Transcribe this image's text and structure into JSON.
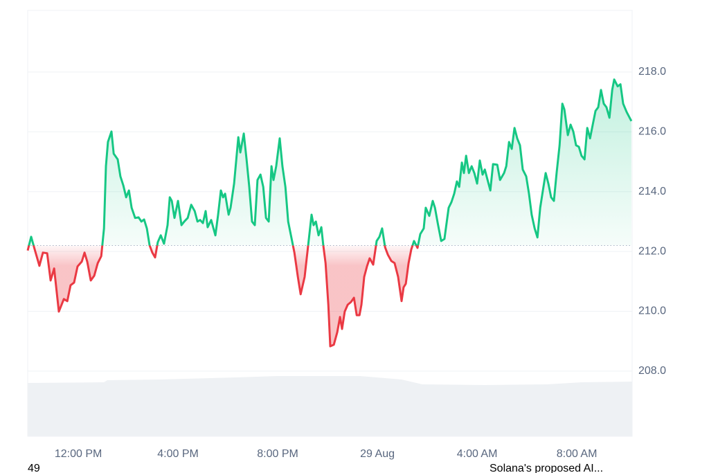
{
  "chart_data": {
    "type": "line",
    "x": [
      9.97,
      10.11,
      10.25,
      10.44,
      10.58,
      10.75,
      10.89,
      11.03,
      11.22,
      11.42,
      11.56,
      11.69,
      11.83,
      11.97,
      12.14,
      12.25,
      12.36,
      12.5,
      12.64,
      12.78,
      12.92,
      13.03,
      13.11,
      13.19,
      13.33,
      13.42,
      13.58,
      13.69,
      13.81,
      13.92,
      14.03,
      14.14,
      14.28,
      14.42,
      14.53,
      14.64,
      14.75,
      14.86,
      14.97,
      15.08,
      15.19,
      15.31,
      15.44,
      15.58,
      15.67,
      15.75,
      15.86,
      16,
      16.14,
      16.25,
      16.39,
      16.53,
      16.67,
      16.78,
      16.89,
      17,
      17.11,
      17.19,
      17.33,
      17.5,
      17.61,
      17.72,
      17.81,
      17.89,
      18.03,
      18.11,
      18.25,
      18.42,
      18.5,
      18.64,
      18.75,
      18.86,
      18.97,
      19.08,
      19.19,
      19.31,
      19.42,
      19.53,
      19.64,
      19.75,
      19.83,
      19.94,
      20.08,
      20.19,
      20.31,
      20.42,
      20.53,
      20.67,
      20.81,
      20.92,
      21.08,
      21.22,
      21.36,
      21.44,
      21.53,
      21.64,
      21.75,
      21.83,
      21.92,
      22.03,
      22.11,
      22.25,
      22.39,
      22.5,
      22.58,
      22.69,
      22.81,
      22.94,
      23.06,
      23.17,
      23.28,
      23.36,
      23.47,
      23.58,
      23.69,
      23.83,
      23.97,
      24.08,
      24.19,
      24.31,
      24.42,
      24.56,
      24.69,
      24.83,
      24.97,
      25.05,
      25.14,
      25.25,
      25.36,
      25.47,
      25.61,
      25.72,
      25.86,
      25.94,
      26.08,
      26.22,
      26.31,
      26.42,
      26.56,
      26.69,
      26.86,
      26.97,
      27.08,
      27.19,
      27.28,
      27.39,
      27.47,
      27.56,
      27.67,
      27.78,
      27.89,
      28,
      28.11,
      28.22,
      28.31,
      28.42,
      28.53,
      28.64,
      28.81,
      28.92,
      29.08,
      29.17,
      29.28,
      29.39,
      29.5,
      29.61,
      29.72,
      29.83,
      29.97,
      30.08,
      30.19,
      30.31,
      30.42,
      30.53,
      30.64,
      30.75,
      30.86,
      30.97,
      31.08,
      31.19,
      31.31,
      31.42,
      31.5,
      31.64,
      31.75,
      31.86,
      31.97,
      32.08,
      32.19,
      32.31,
      32.42,
      32.53,
      32.64,
      32.75,
      32.86,
      32.97,
      33.08,
      33.19,
      33.31,
      33.42,
      33.5,
      33.64,
      33.75,
      33.86,
      34,
      34.19
    ],
    "values": [
      212.03,
      212.49,
      212.07,
      211.52,
      211.96,
      211.94,
      211.03,
      211.43,
      209.99,
      210.41,
      210.34,
      210.87,
      210.96,
      211.5,
      211.66,
      211.96,
      211.66,
      211.03,
      211.19,
      211.61,
      211.84,
      212.77,
      214.85,
      215.66,
      216.01,
      215.27,
      215.08,
      214.51,
      214.2,
      213.81,
      214.04,
      213.46,
      213.12,
      213.14,
      213,
      213.07,
      212.77,
      212.21,
      211.96,
      211.8,
      212.31,
      212.54,
      212.26,
      212.88,
      213.81,
      213.69,
      213.12,
      213.69,
      212.88,
      213,
      213.12,
      213.56,
      213.35,
      213,
      213.05,
      212.95,
      213.35,
      212.81,
      213.05,
      212.54,
      213.23,
      214.04,
      213.81,
      213.93,
      213.23,
      213.46,
      214.27,
      215.82,
      215.31,
      215.94,
      215.08,
      214.16,
      213,
      212.88,
      214.39,
      214.57,
      214.16,
      213.12,
      213,
      214.85,
      214.39,
      214.85,
      215.78,
      214.85,
      214.16,
      213,
      212.54,
      211.96,
      211.15,
      210.57,
      211.15,
      212.19,
      213.23,
      212.88,
      213,
      212.54,
      212.81,
      212.19,
      211.61,
      210.22,
      208.83,
      208.88,
      209.3,
      209.81,
      209.41,
      209.99,
      210.22,
      210.31,
      210.45,
      209.87,
      209.87,
      210.22,
      211.15,
      211.5,
      211.77,
      211.56,
      212.35,
      212.49,
      212.77,
      212.14,
      211.89,
      211.68,
      211.61,
      211.15,
      210.34,
      210.8,
      210.92,
      211.61,
      212.07,
      212.35,
      212.12,
      212.58,
      212.77,
      213.46,
      213.19,
      213.69,
      213.46,
      212.95,
      212.35,
      212.42,
      213.46,
      213.65,
      213.93,
      214.34,
      214.16,
      214.97,
      214.62,
      215.2,
      214.62,
      214.85,
      214.62,
      214.27,
      215.04,
      214.57,
      214.74,
      214.39,
      214.04,
      214.92,
      214.9,
      214.39,
      214.62,
      214.85,
      215.66,
      215.43,
      216.13,
      215.78,
      215.55,
      214.74,
      214.51,
      213.93,
      213.23,
      212.77,
      212.47,
      213.46,
      214.04,
      214.62,
      214.27,
      213.81,
      213.69,
      214.62,
      215.55,
      216.94,
      216.75,
      215.89,
      216.24,
      216.01,
      215.55,
      215.5,
      215.2,
      215.08,
      216.13,
      215.78,
      216.24,
      216.7,
      216.82,
      217.4,
      216.94,
      216.82,
      216.47,
      217.4,
      217.75,
      217.52,
      217.59,
      216.94,
      216.66,
      216.36
    ],
    "baseline": 212.2,
    "up_color": "#16c784",
    "down_color": "#ea3943",
    "xlim": [
      9.97,
      34.22
    ],
    "xticks": [
      {
        "value": 12,
        "label": "12:00 PM"
      },
      {
        "value": 16,
        "label": "4:00 PM"
      },
      {
        "value": 20,
        "label": "8:00 PM"
      },
      {
        "value": 24,
        "label": "29 Aug"
      },
      {
        "value": 28,
        "label": "4:00 AM"
      },
      {
        "value": 32,
        "label": "8:00 AM"
      }
    ],
    "ylim": [
      205.82,
      220.06
    ],
    "yticks": [
      {
        "value": 208,
        "label": "208.0"
      },
      {
        "value": 210,
        "label": "210.0"
      },
      {
        "value": 212,
        "label": "212.0"
      },
      {
        "value": 214,
        "label": "214.0"
      },
      {
        "value": 216,
        "label": "216.0"
      },
      {
        "value": 218,
        "label": "218.0"
      }
    ],
    "grid": true
  },
  "footer": {
    "left": "49",
    "right": "Solana's proposed AI..."
  }
}
